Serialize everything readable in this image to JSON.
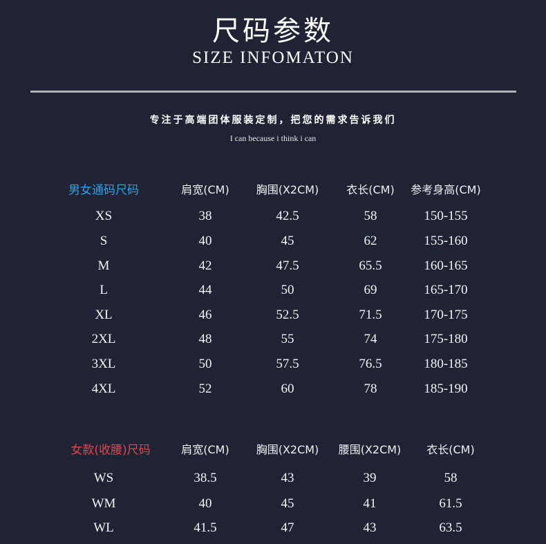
{
  "header": {
    "title": "尺码参数",
    "subtitle": "SIZE INFOMATON",
    "tagline": "专注于高端团体服装定制，把您的需求告诉我们",
    "motto": "I can because i think i can"
  },
  "colors": {
    "background": "#1f2334",
    "unisex_label": "#29a3ea",
    "women_label": "#e8434f"
  },
  "unisex_table": {
    "label": "男女通码尺码",
    "headers": [
      "肩宽(CM)",
      "胸围(X2CM)",
      "衣长(CM)",
      "参考身高(CM)"
    ],
    "rows": [
      [
        "XS",
        "38",
        "42.5",
        "58",
        "150-155"
      ],
      [
        "S",
        "40",
        "45",
        "62",
        "155-160"
      ],
      [
        "M",
        "42",
        "47.5",
        "65.5",
        "160-165"
      ],
      [
        "L",
        "44",
        "50",
        "69",
        "165-170"
      ],
      [
        "XL",
        "46",
        "52.5",
        "71.5",
        "170-175"
      ],
      [
        "2XL",
        "48",
        "55",
        "74",
        "175-180"
      ],
      [
        "3XL",
        "50",
        "57.5",
        "76.5",
        "180-185"
      ],
      [
        "4XL",
        "52",
        "60",
        "78",
        "185-190"
      ]
    ]
  },
  "women_table": {
    "label": "女款(收腰)尺码",
    "headers": [
      "肩宽(CM)",
      "胸围(X2CM)",
      "腰围(X2CM)",
      "衣长(CM)"
    ],
    "rows": [
      [
        "WS",
        "38.5",
        "43",
        "39",
        "58"
      ],
      [
        "WM",
        "40",
        "45",
        "41",
        "61.5"
      ],
      [
        "WL",
        "41.5",
        "47",
        "43",
        "63.5"
      ]
    ]
  }
}
